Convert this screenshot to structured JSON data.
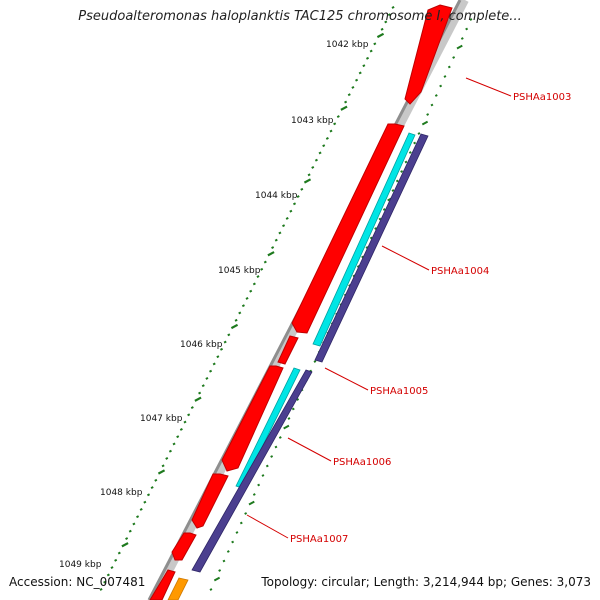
{
  "title": "Pseudoalteromonas haloplanktis TAC125 chromosome I, complete...",
  "footer": {
    "accession": "Accession: NC_007481",
    "summary": "Topology: circular; Length: 3,214,944 bp; Genes: 3,073"
  },
  "ticks": [
    "1042 kbp",
    "1043 kbp",
    "1044 kbp",
    "1045 kbp",
    "1046 kbp",
    "1047 kbp",
    "1048 kbp",
    "1049 kbp"
  ],
  "genes": [
    "PSHAa1003",
    "PSHAa1004",
    "PSHAa1005",
    "PSHAa1006",
    "PSHAa1007"
  ],
  "colors": {
    "gene": "#ff0000",
    "cds": "#00e5e5",
    "feature": "#4b3f8f",
    "tick": "#1e7a1e",
    "backbone": "#9a9a9a",
    "other": "#ff9900",
    "label": "#d40000"
  }
}
